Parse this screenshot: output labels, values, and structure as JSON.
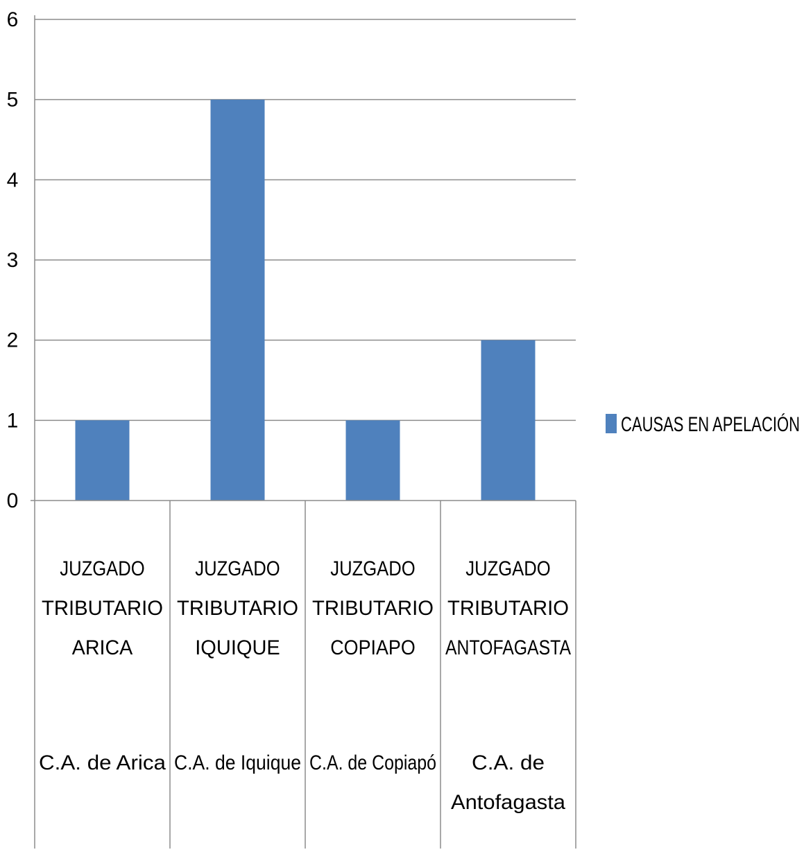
{
  "chart_data": {
    "type": "bar",
    "categories": [
      {
        "group": [
          "JUZGADO",
          "TRIBUTARIO",
          "ARICA"
        ],
        "sub": [
          "C.A. de Arica"
        ]
      },
      {
        "group": [
          "JUZGADO",
          "TRIBUTARIO",
          "IQUIQUE"
        ],
        "sub": [
          "C.A. de Iquique"
        ]
      },
      {
        "group": [
          "JUZGADO",
          "TRIBUTARIO",
          "COPIAPO"
        ],
        "sub": [
          "C.A. de Copiapó"
        ]
      },
      {
        "group": [
          "JUZGADO",
          "TRIBUTARIO",
          "ANTOFAGASTA"
        ],
        "sub": [
          "C.A. de",
          "Antofagasta"
        ]
      }
    ],
    "series": [
      {
        "name": "CAUSAS EN APELACIÓN",
        "color": "#4f81bd",
        "values": [
          1,
          5,
          1,
          2
        ]
      }
    ],
    "ylim": [
      0,
      6
    ],
    "yticks": [
      "0",
      "1",
      "2",
      "3",
      "4",
      "5",
      "6"
    ],
    "grid": true,
    "legend": "right",
    "title": "",
    "xlabel": "",
    "ylabel": ""
  }
}
